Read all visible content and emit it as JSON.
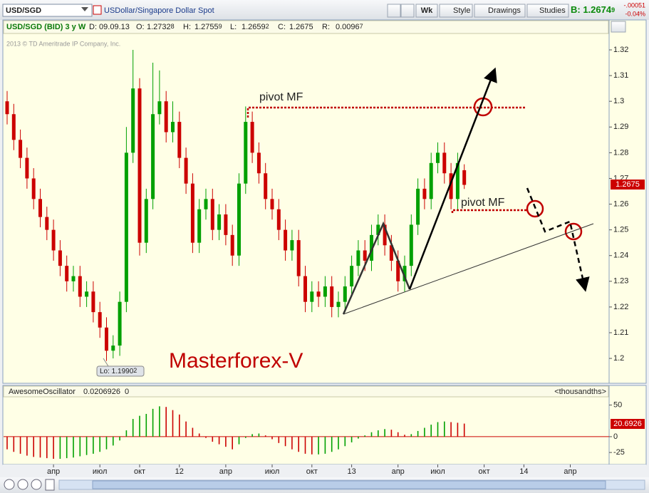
{
  "toolbar": {
    "symbol": "USD/SGD",
    "description": "USDollar/Singapore Dollar Spot",
    "buttons": [
      "Wk",
      "Style",
      "Drawings",
      "Studies"
    ],
    "bid": "B: 1.2674",
    "bid_digit": "9",
    "change": "-.00051",
    "change_pct": "-0.04%"
  },
  "header": {
    "symbol": "USD/SGD (BID) 3 y W",
    "date": "D: 09.09.13",
    "fields": [
      {
        "label": "O:",
        "value": "1.2732",
        "digit": "8"
      },
      {
        "label": "H:",
        "value": "1.2755",
        "digit": "9"
      },
      {
        "label": "L:",
        "value": "1.2659",
        "digit": "2"
      },
      {
        "label": "C:",
        "value": "1.2675"
      },
      {
        "label": "R:",
        "value": "0.0096",
        "digit": "7"
      }
    ]
  },
  "watermark": "2013 © TD Ameritrade IP Company, Inc.",
  "annotations": {
    "pivot_1": "pivot MF",
    "pivot_2": "pivot MF",
    "signature": "Masterforex-V"
  },
  "chart_data": [
    {
      "type": "candlestick",
      "up_color": "#00a000",
      "down_color": "#cc0000",
      "price_label": "1.2675",
      "low_label": "Lo: 1.1990",
      "low_label_digit": "2",
      "ylim": [
        1.1906,
        1.3261
      ],
      "yticks": [
        1.2,
        1.21,
        1.22,
        1.23,
        1.24,
        1.25,
        1.26,
        1.27,
        1.28,
        1.29,
        1.3,
        1.31,
        1.32
      ],
      "categories": [
        null,
        null,
        null,
        null,
        null,
        null,
        null,
        "апр",
        null,
        null,
        null,
        null,
        null,
        null,
        "июл",
        null,
        null,
        null,
        null,
        null,
        "окт",
        null,
        null,
        null,
        null,
        null,
        "12",
        null,
        null,
        null,
        null,
        null,
        null,
        "апр",
        null,
        null,
        null,
        null,
        null,
        null,
        "июл",
        null,
        null,
        null,
        null,
        null,
        "окт",
        null,
        null,
        null,
        null,
        null,
        "13",
        null,
        null,
        null,
        null,
        null,
        null,
        "апр",
        null,
        null,
        null,
        null,
        null,
        "июл",
        null,
        null,
        null,
        null,
        null,
        null,
        "окт",
        null,
        null,
        null,
        null,
        null,
        "14",
        null,
        null,
        null,
        null,
        null,
        null,
        "апр",
        null,
        null,
        null,
        null,
        null
      ],
      "open": [
        1.3,
        1.295,
        1.285,
        1.278,
        1.27,
        1.262,
        1.255,
        1.25,
        1.242,
        1.236,
        1.23,
        1.232,
        1.224,
        1.226,
        1.218,
        1.212,
        1.203,
        1.205,
        1.222,
        1.28,
        1.305,
        1.245,
        1.262,
        1.295,
        1.3,
        1.288,
        1.292,
        1.278,
        1.268,
        1.245,
        1.258,
        1.262,
        1.25,
        1.256,
        1.248,
        1.24,
        1.268,
        1.292,
        1.28,
        1.272,
        1.262,
        1.258,
        1.25,
        1.242,
        1.246,
        1.232,
        1.222,
        1.226,
        1.224,
        1.228,
        1.22,
        1.222,
        1.228,
        1.236,
        1.242,
        1.238,
        1.248,
        1.252,
        1.244,
        1.238,
        1.23,
        1.236,
        1.252,
        1.266,
        1.262,
        1.276,
        1.28,
        1.272,
        1.262,
        1.2732,
        null,
        null,
        null,
        null,
        null,
        null,
        null,
        null,
        null,
        null,
        null,
        null,
        null,
        null,
        null,
        null,
        null,
        null,
        null,
        null,
        null
      ],
      "high": [
        1.304,
        1.299,
        1.289,
        1.282,
        1.274,
        1.266,
        1.259,
        1.254,
        1.246,
        1.24,
        1.236,
        1.236,
        1.23,
        1.23,
        1.222,
        1.216,
        1.209,
        1.226,
        1.29,
        1.32,
        1.309,
        1.266,
        1.315,
        1.312,
        1.304,
        1.3,
        1.296,
        1.282,
        1.272,
        1.262,
        1.266,
        1.266,
        1.26,
        1.26,
        1.252,
        1.272,
        1.298,
        1.296,
        1.284,
        1.276,
        1.266,
        1.262,
        1.254,
        1.25,
        1.25,
        1.236,
        1.23,
        1.23,
        1.232,
        1.232,
        1.226,
        1.232,
        1.24,
        1.246,
        1.246,
        1.252,
        1.256,
        1.256,
        1.248,
        1.242,
        1.24,
        1.256,
        1.27,
        1.27,
        1.28,
        1.284,
        1.284,
        1.276,
        1.28,
        1.2755,
        null,
        null,
        null,
        null,
        null,
        null,
        null,
        null,
        null,
        null,
        null,
        null,
        null,
        null,
        null,
        null,
        null,
        null,
        null,
        null,
        null
      ],
      "low": [
        1.291,
        1.281,
        1.274,
        1.266,
        1.258,
        1.251,
        1.246,
        1.238,
        1.232,
        1.226,
        1.226,
        1.22,
        1.22,
        1.214,
        1.208,
        1.199,
        1.2,
        1.201,
        1.218,
        1.276,
        1.24,
        1.241,
        1.258,
        1.291,
        1.284,
        1.284,
        1.274,
        1.264,
        1.241,
        1.241,
        1.254,
        1.246,
        1.246,
        1.244,
        1.236,
        1.236,
        1.264,
        1.276,
        1.268,
        1.258,
        1.254,
        1.246,
        1.238,
        1.238,
        1.228,
        1.218,
        1.218,
        1.22,
        1.22,
        1.216,
        1.216,
        1.218,
        1.224,
        1.232,
        1.234,
        1.234,
        1.244,
        1.24,
        1.234,
        1.226,
        1.226,
        1.232,
        1.248,
        1.258,
        1.258,
        1.272,
        1.268,
        1.258,
        1.258,
        1.2659,
        null,
        null,
        null,
        null,
        null,
        null,
        null,
        null,
        null,
        null,
        null,
        null,
        null,
        null,
        null,
        null,
        null,
        null,
        null,
        null,
        null
      ],
      "close": [
        1.295,
        1.285,
        1.278,
        1.27,
        1.262,
        1.255,
        1.25,
        1.242,
        1.236,
        1.23,
        1.232,
        1.224,
        1.226,
        1.218,
        1.212,
        1.203,
        1.205,
        1.222,
        1.28,
        1.305,
        1.245,
        1.262,
        1.295,
        1.3,
        1.288,
        1.292,
        1.278,
        1.268,
        1.245,
        1.258,
        1.262,
        1.25,
        1.256,
        1.248,
        1.24,
        1.268,
        1.292,
        1.28,
        1.272,
        1.262,
        1.258,
        1.25,
        1.242,
        1.246,
        1.232,
        1.222,
        1.226,
        1.224,
        1.228,
        1.22,
        1.222,
        1.228,
        1.236,
        1.242,
        1.238,
        1.248,
        1.252,
        1.244,
        1.238,
        1.23,
        1.236,
        1.252,
        1.266,
        1.262,
        1.276,
        1.28,
        1.272,
        1.262,
        1.276,
        1.2675,
        null,
        null,
        null,
        null,
        null,
        null,
        null,
        null,
        null,
        null,
        null,
        null,
        null,
        null,
        null,
        null,
        null,
        null,
        null,
        null,
        null
      ]
    },
    {
      "type": "bar",
      "name": "AwesomeOscillator",
      "value_text": "0.0206926",
      "param": "0",
      "units": "<thousandths>",
      "last_label": "20.6926",
      "up_color": "#00a000",
      "down_color": "#cc0000",
      "zero_color": "#cc0000",
      "ylim": [
        -44,
        63
      ],
      "yticks": [
        -25,
        0,
        50
      ],
      "values": [
        -20,
        -24,
        -27,
        -30,
        -32,
        -33,
        -34,
        -35,
        -35,
        -34,
        -33,
        -31,
        -29,
        -27,
        -24,
        -20,
        -14,
        -6,
        10,
        28,
        33,
        36,
        44,
        48,
        47,
        42,
        35,
        24,
        14,
        5,
        -2,
        -8,
        -12,
        -16,
        -20,
        -12,
        -2,
        4,
        5,
        2,
        -4,
        -10,
        -15,
        -20,
        -24,
        -27,
        -28,
        -28,
        -27,
        -24,
        -20,
        -15,
        -9,
        -3,
        2,
        7,
        10,
        12,
        11,
        7,
        3,
        4,
        9,
        14,
        19,
        23,
        24,
        23,
        22,
        20.6926,
        null,
        null,
        null,
        null,
        null,
        null,
        null,
        null,
        null,
        null,
        null,
        null,
        null,
        null,
        null,
        null,
        null,
        null,
        null,
        null,
        null
      ]
    }
  ]
}
